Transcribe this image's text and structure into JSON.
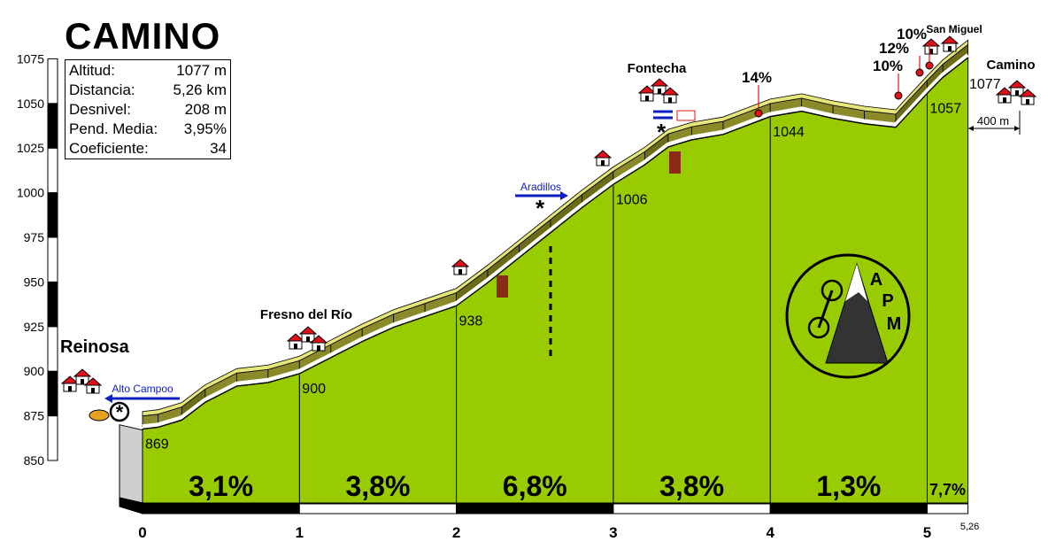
{
  "title": "CAMINO",
  "stats": [
    {
      "label": "Altitud:",
      "value": "1077 m"
    },
    {
      "label": "Distancia:",
      "value": "5,26 km"
    },
    {
      "label": "Desnivel:",
      "value": "208 m"
    },
    {
      "label": "Pend. Media:",
      "value": "3,95%"
    },
    {
      "label": "Coeficiente:",
      "value": "34"
    }
  ],
  "chart_data": {
    "type": "area",
    "title": "CAMINO",
    "xlabel": "",
    "ylabel": "",
    "xlim": [
      0,
      5.26
    ],
    "ylim": [
      850,
      1075
    ],
    "y_ticks": [
      850,
      875,
      900,
      925,
      950,
      975,
      1000,
      1025,
      1050,
      1075
    ],
    "x_ticks": [
      "0",
      "1",
      "2",
      "3",
      "4",
      "5"
    ],
    "x_end_label": "5,26",
    "profile": [
      [
        0,
        869
      ],
      [
        0.1,
        870
      ],
      [
        0.25,
        874
      ],
      [
        0.4,
        884
      ],
      [
        0.6,
        893
      ],
      [
        0.8,
        895
      ],
      [
        1.0,
        900
      ],
      [
        1.2,
        909
      ],
      [
        1.4,
        918
      ],
      [
        1.6,
        926
      ],
      [
        1.8,
        932
      ],
      [
        2.0,
        938
      ],
      [
        2.2,
        951
      ],
      [
        2.4,
        965
      ],
      [
        2.6,
        979
      ],
      [
        2.8,
        993
      ],
      [
        3.0,
        1006
      ],
      [
        3.2,
        1017
      ],
      [
        3.35,
        1027
      ],
      [
        3.5,
        1031
      ],
      [
        3.7,
        1034
      ],
      [
        4.0,
        1044
      ],
      [
        4.2,
        1047
      ],
      [
        4.4,
        1043
      ],
      [
        4.6,
        1040
      ],
      [
        4.8,
        1038
      ],
      [
        5.0,
        1057
      ],
      [
        5.1,
        1066
      ],
      [
        5.26,
        1077
      ]
    ],
    "km_markers": [
      {
        "km": 0,
        "alt": "869"
      },
      {
        "km": 1,
        "alt": "900"
      },
      {
        "km": 2,
        "alt": "938"
      },
      {
        "km": 3,
        "alt": "1006"
      },
      {
        "km": 4,
        "alt": "1044"
      },
      {
        "km": 5,
        "alt": "1057"
      }
    ],
    "segments": [
      {
        "from": 0,
        "to": 1,
        "gradient": "3,1%"
      },
      {
        "from": 1,
        "to": 2,
        "gradient": "3,8%"
      },
      {
        "from": 2,
        "to": 3,
        "gradient": "6,8%"
      },
      {
        "from": 3,
        "to": 4,
        "gradient": "3,8%"
      },
      {
        "from": 4,
        "to": 5,
        "gradient": "1,3%"
      },
      {
        "from": 5,
        "to": 5.26,
        "gradient": "7,7%"
      }
    ],
    "places": [
      {
        "name": "Reinosa",
        "km": 0,
        "alt": 869
      },
      {
        "name": "Fresno del Río",
        "km": 1,
        "alt": 900
      },
      {
        "name": "Fontecha",
        "km": 3.4,
        "alt": 1030
      },
      {
        "name": "San Miguel",
        "km": 5.15,
        "alt": 1070
      },
      {
        "name": "Camino",
        "km": 5.26,
        "alt": 1077,
        "alt_label": "1077"
      }
    ],
    "annotations": [
      {
        "text": "Alto Campoo",
        "type": "road-left",
        "km": 0,
        "alt": 890
      },
      {
        "text": "Aradillos",
        "type": "road-right",
        "km": 2.55,
        "alt": 1000
      },
      {
        "text": "14%",
        "km": 3.95,
        "alt": 1046
      },
      {
        "text": "10%",
        "km": 4.9,
        "alt": 1055
      },
      {
        "text": "12%",
        "km": 5.05,
        "alt": 1063
      },
      {
        "text": "10%",
        "km": 5.1,
        "alt": 1070
      },
      {
        "text": "400 m",
        "type": "scale"
      }
    ],
    "logo_text": "APM",
    "colors": {
      "fill": "#99cc00",
      "road_top": "#e6e67a",
      "road_side": "#6b6b1a",
      "axis_black": "#000000",
      "marker_red": "#e0101a",
      "road_blue": "#1020c0",
      "bar_brown": "#8b2a1a"
    }
  }
}
